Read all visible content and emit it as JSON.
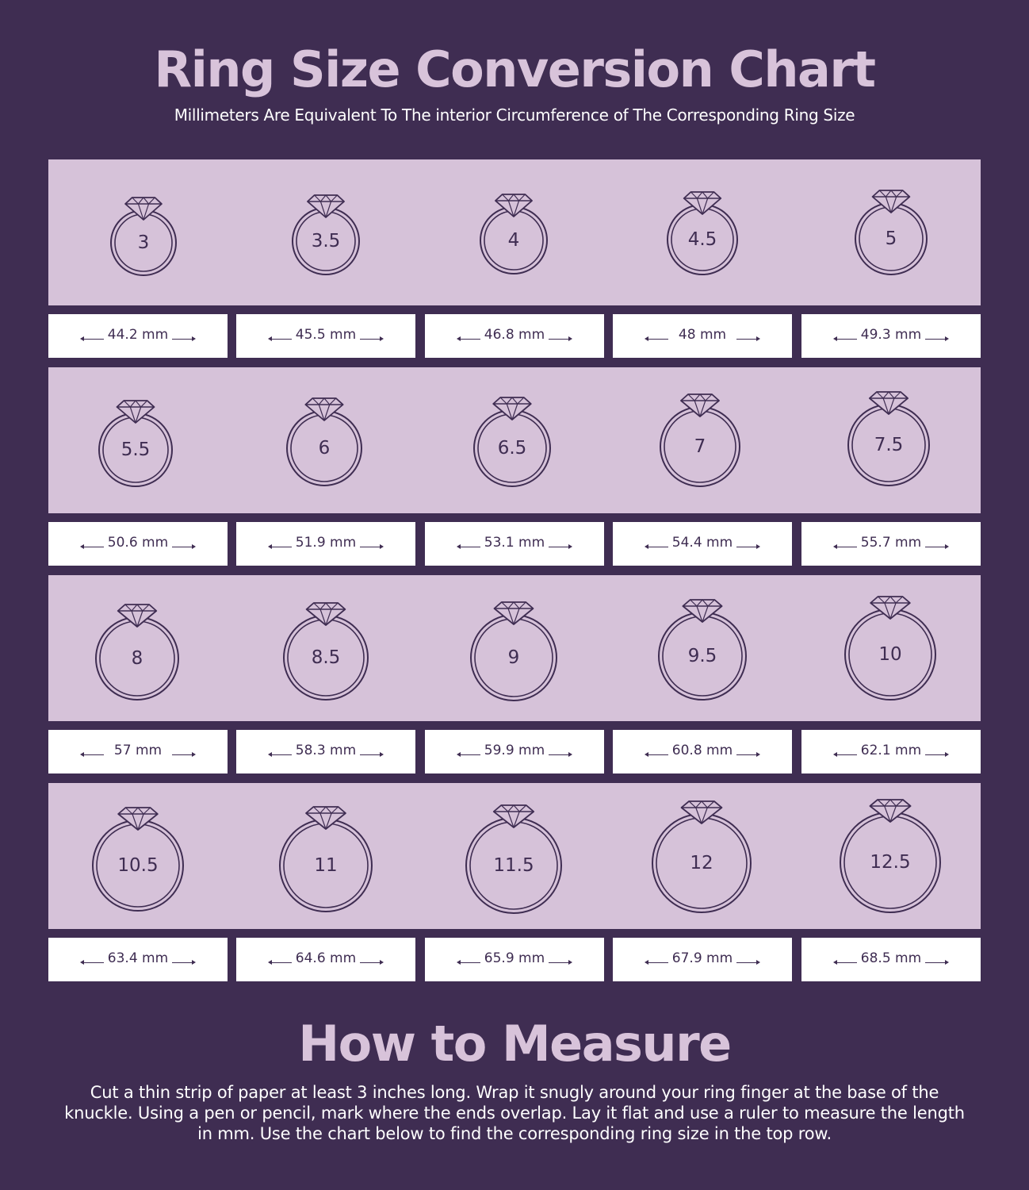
{
  "header": {
    "title": "Ring Size Conversion Chart",
    "subtitle": "Millimeters Are Equivalent To The interior Circumference of The Corresponding Ring Size"
  },
  "rows": [
    {
      "rings": [
        {
          "size": "3",
          "mm": "44.2 mm"
        },
        {
          "size": "3.5",
          "mm": "45.5 mm"
        },
        {
          "size": "4",
          "mm": "46.8 mm"
        },
        {
          "size": "4.5",
          "mm": "48 mm"
        },
        {
          "size": "5",
          "mm": "49.3 mm"
        }
      ]
    },
    {
      "rings": [
        {
          "size": "5.5",
          "mm": "50.6 mm"
        },
        {
          "size": "6",
          "mm": "51.9 mm"
        },
        {
          "size": "6.5",
          "mm": "53.1 mm"
        },
        {
          "size": "7",
          "mm": "54.4 mm"
        },
        {
          "size": "7.5",
          "mm": "55.7 mm"
        }
      ]
    },
    {
      "rings": [
        {
          "size": "8",
          "mm": "57 mm"
        },
        {
          "size": "8.5",
          "mm": "58.3 mm"
        },
        {
          "size": "9",
          "mm": "59.9 mm"
        },
        {
          "size": "9.5",
          "mm": "60.8 mm"
        },
        {
          "size": "10",
          "mm": "62.1 mm"
        }
      ]
    },
    {
      "rings": [
        {
          "size": "10.5",
          "mm": "63.4 mm"
        },
        {
          "size": "11",
          "mm": "64.6 mm"
        },
        {
          "size": "11.5",
          "mm": "65.9 mm"
        },
        {
          "size": "12",
          "mm": "67.9 mm"
        },
        {
          "size": "12.5",
          "mm": "68.5 mm"
        }
      ]
    }
  ],
  "measure": {
    "title": "How to Measure",
    "text": "Cut a thin strip of paper at least 3 inches long. Wrap it snugly around your ring finger at the base of the knuckle. Using a pen or pencil, mark where the ends overlap. Lay it flat and use a ruler to measure the length in mm. Use the chart below to find the corresponding ring size in the top row."
  },
  "colors": {
    "background": "#3f2d52",
    "band": "#d6c2d9",
    "title": "#d8c3da",
    "ring_stroke": "#3f2d52",
    "box": "#ffffff"
  },
  "icons": {
    "ring": "diamond-ring-icon",
    "arrow_left": "arrow-left-icon",
    "arrow_right": "arrow-right-icon"
  }
}
